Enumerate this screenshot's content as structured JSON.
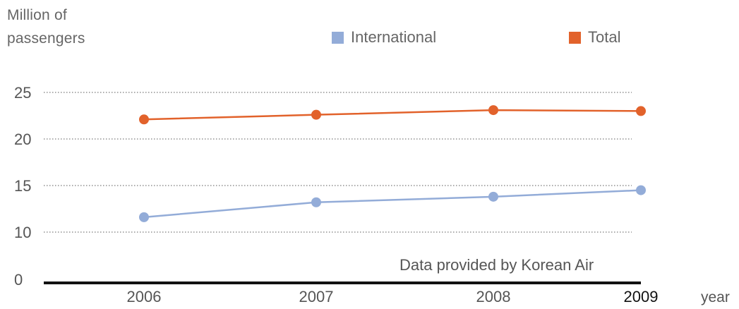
{
  "ylabel": {
    "line1": "Million of",
    "line2": "passengers"
  },
  "xlabel": "year",
  "note": "Data provided by Korean Air",
  "legend": [
    {
      "name": "International",
      "color": "#93acd8"
    },
    {
      "name": "Total",
      "color": "#e2622b"
    }
  ],
  "chart_data": {
    "type": "line",
    "x": [
      "2006",
      "2007",
      "2008",
      "2009"
    ],
    "series": [
      {
        "name": "International",
        "color": "#93acd8",
        "values": [
          11.6,
          13.2,
          13.8,
          14.5
        ]
      },
      {
        "name": "Total",
        "color": "#e2622b",
        "values": [
          22.1,
          22.6,
          23.1,
          23.0
        ]
      }
    ],
    "yticks": [
      0,
      10,
      15,
      20,
      25
    ],
    "ylim": [
      0,
      25
    ],
    "xlabel": "year",
    "ylabel": "Million of passengers",
    "grid": "dotted horizontal",
    "legend": "top"
  }
}
